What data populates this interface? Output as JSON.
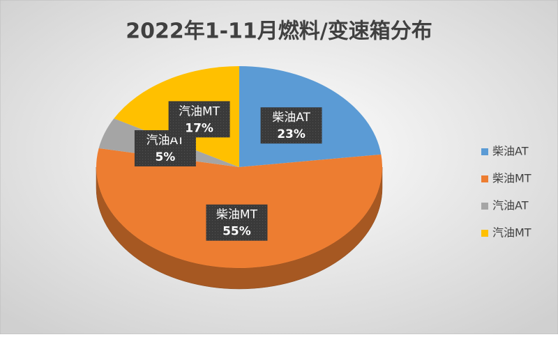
{
  "chart_data": {
    "type": "pie",
    "title": "2022年1-11月燃料/变速箱分布",
    "categories": [
      "柴油AT",
      "柴油MT",
      "汽油AT",
      "汽油MT"
    ],
    "values": [
      23,
      55,
      5,
      17
    ],
    "value_labels": [
      "23%",
      "55%",
      "5%",
      "17%"
    ],
    "colors": [
      "#5b9bd5",
      "#ed7d31",
      "#a5a5a5",
      "#ffc000"
    ],
    "legend": "right"
  }
}
